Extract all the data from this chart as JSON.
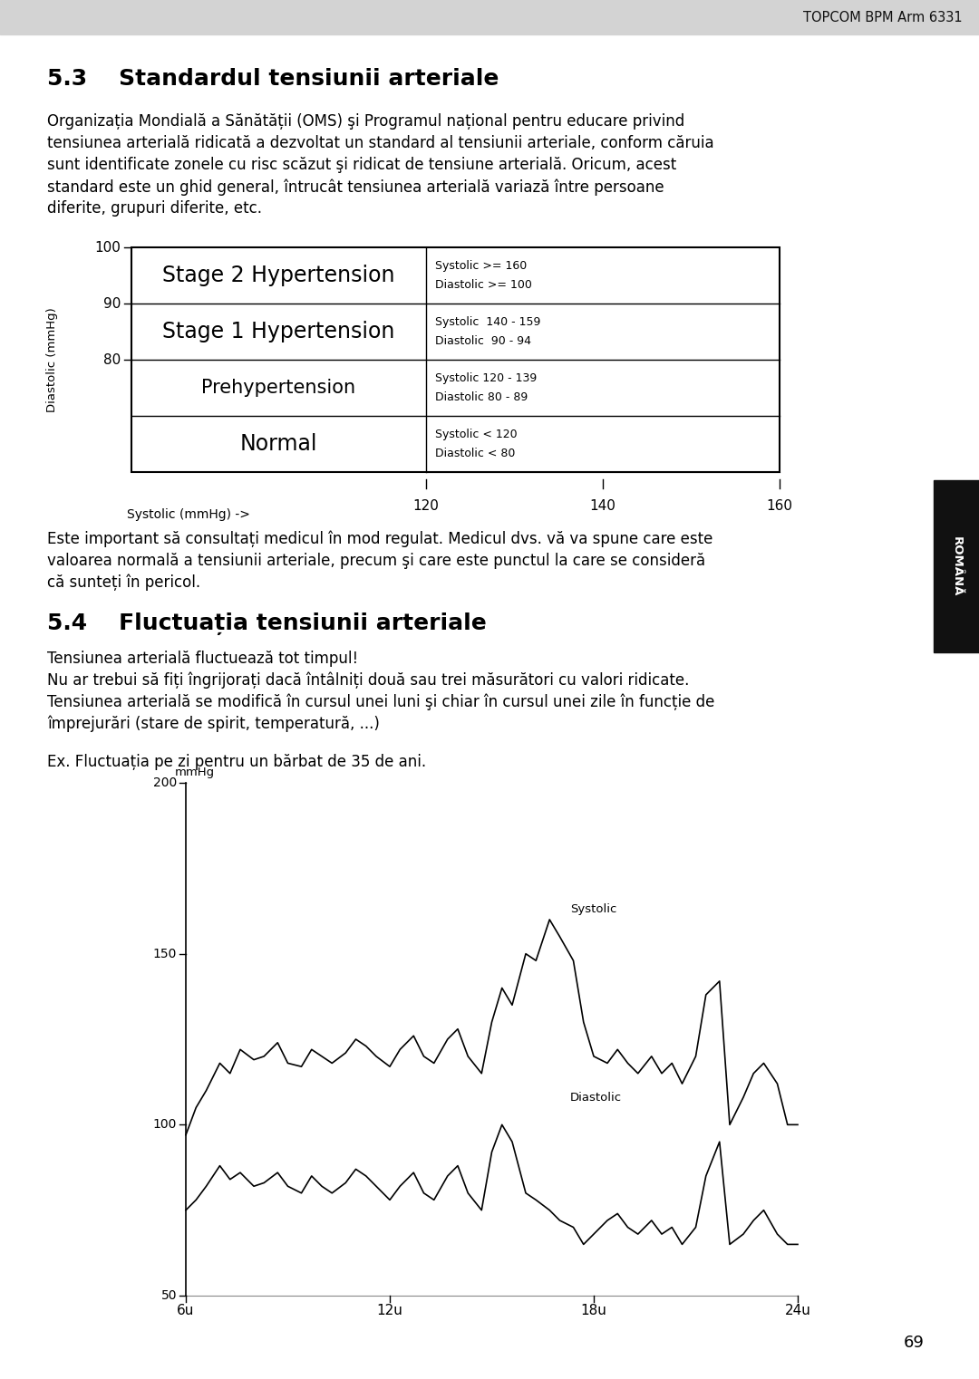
{
  "header_text": "TOPCOM BPM Arm 6331",
  "header_bg": "#d3d3d3",
  "section_title_53": "5.3    Standardul tensiunii arteriale",
  "para_53_lines": [
    "Organizația Mondială a Sănătății (OMS) şi Programul național pentru educare privind",
    "tensiunea arterială ridicată a dezvoltat un standard al tensiunii arteriale, conform căruia",
    "sunt identificate zonele cu risc scăzut şi ridicat de tensiune arterială. Oricum, acest",
    "standard este un ghid general, întrucât tensiunea arterială variază între persoane",
    "diferite, grupuri diferite, etc."
  ],
  "row_labels": [
    "Stage 2 Hypertension",
    "Stage 1 Hypertension",
    "Prehypertension",
    "Normal"
  ],
  "row_sys": [
    "Systolic >= 160",
    "Systolic  140 - 159",
    "Systolic 120 - 139",
    "Systolic < 120"
  ],
  "row_dia": [
    "Diastolic >= 100",
    "Diastolic  90 - 94",
    "Diastolic 80 - 89",
    "Diastolic < 80"
  ],
  "x_ticks_bp": [
    120,
    140,
    160
  ],
  "x_label_bp": "Systolic (mmHg) ->",
  "y_label_bp": "Diastolic (mmHg)",
  "ytick_vals": [
    100,
    90,
    80
  ],
  "para_after_table_lines": [
    "Este important să consultați medicul în mod regulat. Medicul dvs. vă va spune care este",
    "valoarea normală a tensiunii arteriale, precum şi care este punctul la care se consideră",
    "că sunteți în pericol."
  ],
  "section_title_54": "5.4    Fluctuația tensiunii arteriale",
  "para_54_lines": [
    "Tensiunea arterială fluctuează tot timpul!",
    "Nu ar trebui să fiți îngrijorați dacă întâlniți două sau trei măsurători cu valori ridicate.",
    "Tensiunea arterială se modifică în cursul unei luni şi chiar în cursul unei zile în funcție de",
    "împrejurări (stare de spirit, temperatură, ...)"
  ],
  "para_54_ex": "Ex. Fluctuația pe zi pentru un bărbat de 35 de ani.",
  "sidebar_text": "ROMÂNĂ",
  "page_num": "69",
  "bg_color": "#ffffff",
  "systolic_x": [
    6,
    6.3,
    6.6,
    7,
    7.3,
    7.6,
    8,
    8.3,
    8.7,
    9,
    9.4,
    9.7,
    10,
    10.3,
    10.7,
    11,
    11.3,
    11.6,
    12,
    12.3,
    12.7,
    13,
    13.3,
    13.7,
    14,
    14.3,
    14.7,
    15,
    15.3,
    15.6,
    16,
    16.3,
    16.7,
    17,
    17.4,
    17.7,
    18,
    18.4,
    18.7,
    19,
    19.3,
    19.7,
    20,
    20.3,
    20.6,
    21,
    21.3,
    21.7,
    22,
    22.4,
    22.7,
    23,
    23.4,
    23.7,
    24
  ],
  "systolic_y": [
    97,
    105,
    110,
    118,
    115,
    122,
    119,
    120,
    124,
    118,
    117,
    122,
    120,
    118,
    121,
    125,
    123,
    120,
    117,
    122,
    126,
    120,
    118,
    125,
    128,
    120,
    115,
    130,
    140,
    135,
    150,
    148,
    160,
    155,
    148,
    130,
    120,
    118,
    122,
    118,
    115,
    120,
    115,
    118,
    112,
    120,
    138,
    142,
    100,
    108,
    115,
    118,
    112,
    100,
    100
  ],
  "diastolic_x": [
    6,
    6.3,
    6.6,
    7,
    7.3,
    7.6,
    8,
    8.3,
    8.7,
    9,
    9.4,
    9.7,
    10,
    10.3,
    10.7,
    11,
    11.3,
    11.6,
    12,
    12.3,
    12.7,
    13,
    13.3,
    13.7,
    14,
    14.3,
    14.7,
    15,
    15.3,
    15.6,
    16,
    16.3,
    16.7,
    17,
    17.4,
    17.7,
    18,
    18.4,
    18.7,
    19,
    19.3,
    19.7,
    20,
    20.3,
    20.6,
    21,
    21.3,
    21.7,
    22,
    22.4,
    22.7,
    23,
    23.4,
    23.7,
    24
  ],
  "diastolic_y": [
    75,
    78,
    82,
    88,
    84,
    86,
    82,
    83,
    86,
    82,
    80,
    85,
    82,
    80,
    83,
    87,
    85,
    82,
    78,
    82,
    86,
    80,
    78,
    85,
    88,
    80,
    75,
    92,
    100,
    95,
    80,
    78,
    75,
    72,
    70,
    65,
    68,
    72,
    74,
    70,
    68,
    72,
    68,
    70,
    65,
    70,
    85,
    95,
    65,
    68,
    72,
    75,
    68,
    65,
    65
  ]
}
